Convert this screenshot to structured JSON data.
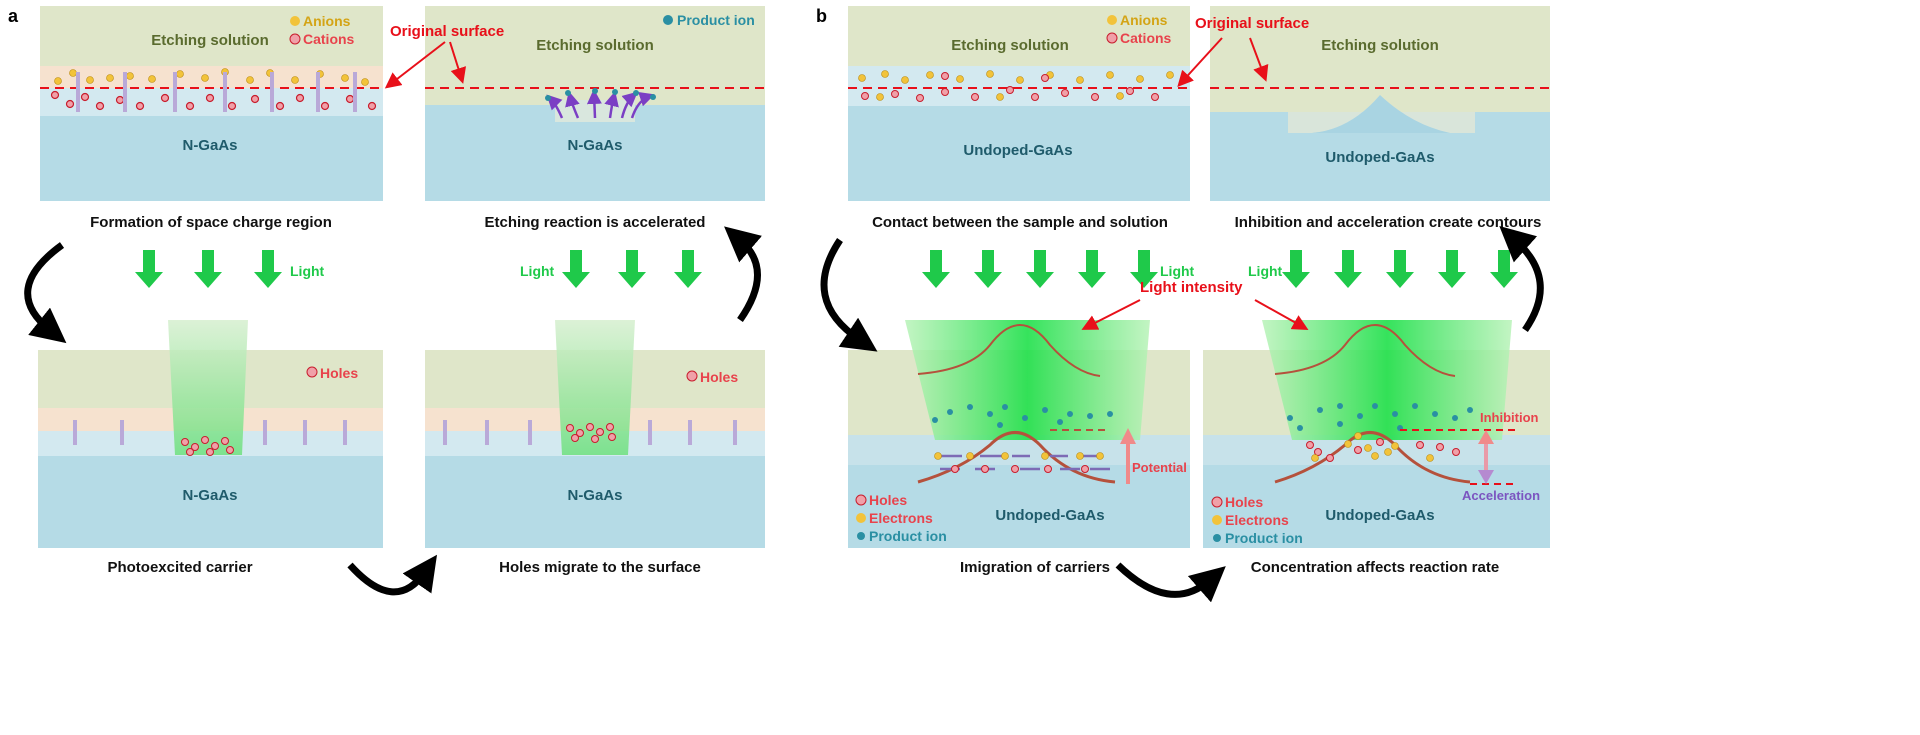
{
  "panel_labels": {
    "a": "a",
    "b": "b"
  },
  "colors": {
    "solution": "#dfe6c9",
    "depletion": "#f6e2cf",
    "surface": "#d3e9f0",
    "substrate": "#b5dbe6",
    "light": "#1fe04a",
    "marker": "#e8101a"
  },
  "panel_a": {
    "step1": {
      "solution": "Etching solution",
      "substrate": "N-GaAs",
      "legend_anions": "Anions",
      "legend_cations": "Cations",
      "caption": "Formation of space charge region"
    },
    "step2": {
      "solution": "Etching solution",
      "substrate": "N-GaAs",
      "legend_product": "Product ion",
      "caption": "Etching reaction is accelerated"
    },
    "step3": {
      "substrate": "N-GaAs",
      "legend_holes": "Holes",
      "light": "Light",
      "caption": "Photoexcited carrier"
    },
    "step4": {
      "substrate": "N-GaAs",
      "legend_holes": "Holes",
      "light": "Light",
      "caption": "Holes migrate to the surface"
    },
    "original_surface": "Original surface"
  },
  "panel_b": {
    "step1": {
      "solution": "Etching solution",
      "substrate": "Undoped-GaAs",
      "legend_anions": "Anions",
      "legend_cations": "Cations",
      "caption": "Contact between the sample and solution"
    },
    "step2": {
      "solution": "Etching solution",
      "substrate": "Undoped-GaAs",
      "caption": "Inhibition and acceleration create contours"
    },
    "step3": {
      "substrate": "Undoped-GaAs",
      "light": "Light",
      "potential": "Potential",
      "legend_holes": "Holes",
      "legend_electrons": "Electrons",
      "legend_product": "Product ion",
      "caption": "Imigration of carriers"
    },
    "step4": {
      "substrate": "Undoped-GaAs",
      "light": "Light",
      "inhibition": "Inhibition",
      "acceleration": "Acceleration",
      "legend_holes": "Holes",
      "legend_electrons": "Electrons",
      "legend_product": "Product ion",
      "caption": "Concentration affects reaction rate"
    },
    "original_surface": "Original surface",
    "light_intensity": "Light intensity"
  }
}
